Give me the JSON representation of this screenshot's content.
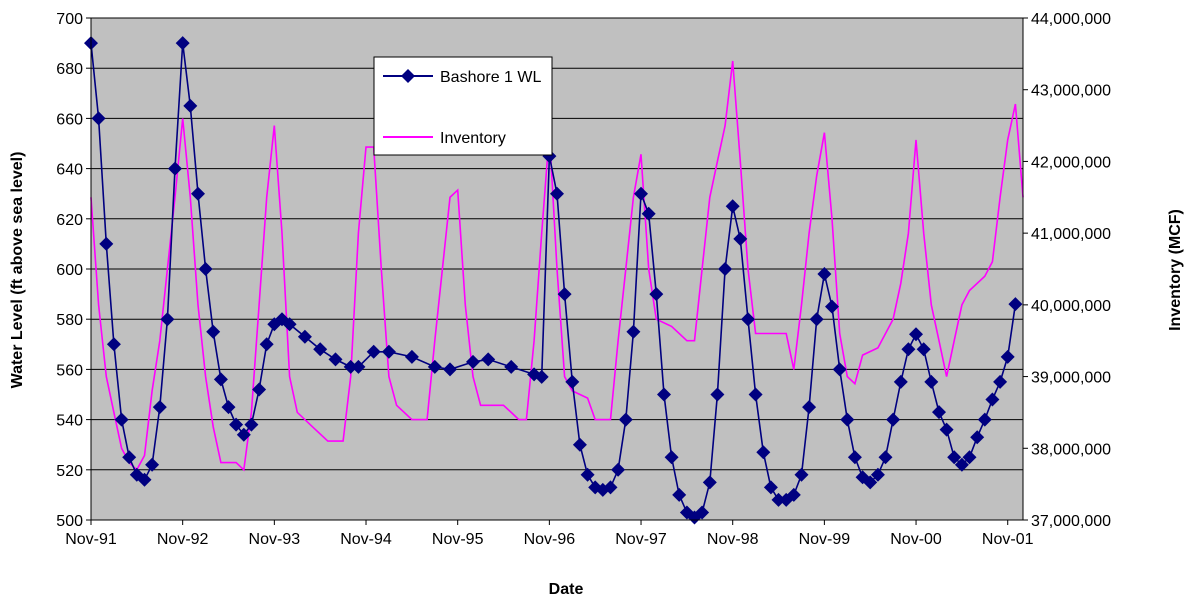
{
  "chart_data": {
    "type": "line",
    "title": "",
    "xlabel": "Date",
    "ylabel": "Water Level (ft above sea level)",
    "y2label": "Inventory (MCF)",
    "x_tick_labels": [
      "Nov-91",
      "Nov-92",
      "Nov-93",
      "Nov-94",
      "Nov-95",
      "Nov-96",
      "Nov-97",
      "Nov-98",
      "Nov-99",
      "Nov-00",
      "Nov-01"
    ],
    "xlim": [
      "1991-11",
      "2002-01"
    ],
    "ylim": [
      500,
      700
    ],
    "y_ticks": [
      500,
      520,
      540,
      560,
      580,
      600,
      620,
      640,
      660,
      680,
      700
    ],
    "y_tick_labels": [
      "500",
      "520",
      "540",
      "560",
      "580",
      "600",
      "620",
      "640",
      "660",
      "680",
      "700"
    ],
    "y2lim": [
      37000000,
      44000000
    ],
    "y2_ticks": [
      37000000,
      38000000,
      39000000,
      40000000,
      41000000,
      42000000,
      43000000,
      44000000
    ],
    "y2_tick_labels": [
      "37,000,000",
      "38,000,000",
      "39,000,000",
      "40,000,000",
      "41,000,000",
      "42,000,000",
      "43,000,000",
      "44,000,000"
    ],
    "grid": true,
    "plot_background": "#c0c0c0",
    "legend": {
      "placement": "top-center"
    },
    "series": [
      {
        "name": "Bashore 1 WL",
        "axis": "left",
        "color": "#000080",
        "marker": "diamond",
        "points": [
          [
            "1991-11",
            690
          ],
          [
            "1991-12",
            660
          ],
          [
            "1992-01",
            610
          ],
          [
            "1992-02",
            570
          ],
          [
            "1992-03",
            540
          ],
          [
            "1992-04",
            525
          ],
          [
            "1992-05",
            518
          ],
          [
            "1992-06",
            516
          ],
          [
            "1992-07",
            522
          ],
          [
            "1992-08",
            545
          ],
          [
            "1992-09",
            580
          ],
          [
            "1992-10",
            640
          ],
          [
            "1992-11",
            690
          ],
          [
            "1992-12",
            665
          ],
          [
            "1993-01",
            630
          ],
          [
            "1993-02",
            600
          ],
          [
            "1993-03",
            575
          ],
          [
            "1993-04",
            556
          ],
          [
            "1993-05",
            545
          ],
          [
            "1993-06",
            538
          ],
          [
            "1993-07",
            534
          ],
          [
            "1993-08",
            538
          ],
          [
            "1993-09",
            552
          ],
          [
            "1993-10",
            570
          ],
          [
            "1993-11",
            578
          ],
          [
            "1993-12",
            580
          ],
          [
            "1994-01",
            578
          ],
          [
            "1994-03",
            573
          ],
          [
            "1994-05",
            568
          ],
          [
            "1994-07",
            564
          ],
          [
            "1994-09",
            561
          ],
          [
            "1994-10",
            561
          ],
          [
            "1994-12",
            567
          ],
          [
            "1995-02",
            567
          ],
          [
            "1995-05",
            565
          ],
          [
            "1995-08",
            561
          ],
          [
            "1995-10",
            560
          ],
          [
            "1996-01",
            563
          ],
          [
            "1996-03",
            564
          ],
          [
            "1996-06",
            561
          ],
          [
            "1996-09",
            558
          ],
          [
            "1996-10",
            557
          ],
          [
            "1996-11",
            645
          ],
          [
            "1996-12",
            630
          ],
          [
            "1997-01",
            590
          ],
          [
            "1997-02",
            555
          ],
          [
            "1997-03",
            530
          ],
          [
            "1997-04",
            518
          ],
          [
            "1997-05",
            513
          ],
          [
            "1997-06",
            512
          ],
          [
            "1997-07",
            513
          ],
          [
            "1997-08",
            520
          ],
          [
            "1997-09",
            540
          ],
          [
            "1997-10",
            575
          ],
          [
            "1997-11",
            630
          ],
          [
            "1997-12",
            622
          ],
          [
            "1998-01",
            590
          ],
          [
            "1998-02",
            550
          ],
          [
            "1998-03",
            525
          ],
          [
            "1998-04",
            510
          ],
          [
            "1998-05",
            503
          ],
          [
            "1998-06",
            501
          ],
          [
            "1998-07",
            503
          ],
          [
            "1998-08",
            515
          ],
          [
            "1998-09",
            550
          ],
          [
            "1998-10",
            600
          ],
          [
            "1998-11",
            625
          ],
          [
            "1998-12",
            612
          ],
          [
            "1999-01",
            580
          ],
          [
            "1999-02",
            550
          ],
          [
            "1999-03",
            527
          ],
          [
            "1999-04",
            513
          ],
          [
            "1999-05",
            508
          ],
          [
            "1999-06",
            508
          ],
          [
            "1999-07",
            510
          ],
          [
            "1999-08",
            518
          ],
          [
            "1999-09",
            545
          ],
          [
            "1999-10",
            580
          ],
          [
            "1999-11",
            598
          ],
          [
            "1999-12",
            585
          ],
          [
            "2000-01",
            560
          ],
          [
            "2000-02",
            540
          ],
          [
            "2000-03",
            525
          ],
          [
            "2000-04",
            517
          ],
          [
            "2000-05",
            515
          ],
          [
            "2000-06",
            518
          ],
          [
            "2000-07",
            525
          ],
          [
            "2000-08",
            540
          ],
          [
            "2000-09",
            555
          ],
          [
            "2000-10",
            568
          ],
          [
            "2000-11",
            574
          ],
          [
            "2000-12",
            568
          ],
          [
            "2001-01",
            555
          ],
          [
            "2001-02",
            543
          ],
          [
            "2001-03",
            536
          ],
          [
            "2001-04",
            525
          ],
          [
            "2001-05",
            522
          ],
          [
            "2001-06",
            525
          ],
          [
            "2001-07",
            533
          ],
          [
            "2001-08",
            540
          ],
          [
            "2001-09",
            548
          ],
          [
            "2001-10",
            555
          ],
          [
            "2001-11",
            565
          ],
          [
            "2001-12",
            586
          ]
        ]
      },
      {
        "name": "Inventory",
        "axis": "right",
        "color": "#ff00ff",
        "marker": "none",
        "points": [
          [
            "1991-11",
            41500000
          ],
          [
            "1991-12",
            40000000
          ],
          [
            "1992-01",
            39000000
          ],
          [
            "1992-02",
            38500000
          ],
          [
            "1992-03",
            38000000
          ],
          [
            "1992-04",
            37800000
          ],
          [
            "1992-05",
            37700000
          ],
          [
            "1992-06",
            37900000
          ],
          [
            "1992-07",
            38800000
          ],
          [
            "1992-08",
            39500000
          ],
          [
            "1992-09",
            40500000
          ],
          [
            "1992-10",
            41500000
          ],
          [
            "1992-11",
            42600000
          ],
          [
            "1992-12",
            41500000
          ],
          [
            "1993-01",
            40000000
          ],
          [
            "1993-02",
            39000000
          ],
          [
            "1993-03",
            38300000
          ],
          [
            "1993-04",
            37800000
          ],
          [
            "1993-06",
            37800000
          ],
          [
            "1993-07",
            37700000
          ],
          [
            "1993-08",
            38500000
          ],
          [
            "1993-09",
            40000000
          ],
          [
            "1993-10",
            41500000
          ],
          [
            "1993-11",
            42500000
          ],
          [
            "1993-12",
            41000000
          ],
          [
            "1994-01",
            39000000
          ],
          [
            "1994-02",
            38500000
          ],
          [
            "1994-04",
            38300000
          ],
          [
            "1994-06",
            38100000
          ],
          [
            "1994-08",
            38100000
          ],
          [
            "1994-09",
            39000000
          ],
          [
            "1994-10",
            41000000
          ],
          [
            "1994-11",
            42200000
          ],
          [
            "1994-12",
            42200000
          ],
          [
            "1995-01",
            40500000
          ],
          [
            "1995-02",
            39000000
          ],
          [
            "1995-03",
            38600000
          ],
          [
            "1995-05",
            38400000
          ],
          [
            "1995-07",
            38400000
          ],
          [
            "1995-08",
            39500000
          ],
          [
            "1995-09",
            40500000
          ],
          [
            "1995-10",
            41500000
          ],
          [
            "1995-11",
            41600000
          ],
          [
            "1995-12",
            40000000
          ],
          [
            "1996-01",
            39000000
          ],
          [
            "1996-02",
            38600000
          ],
          [
            "1996-05",
            38600000
          ],
          [
            "1996-06",
            38500000
          ],
          [
            "1996-07",
            38400000
          ],
          [
            "1996-08",
            38400000
          ],
          [
            "1996-09",
            39500000
          ],
          [
            "1996-10",
            41000000
          ],
          [
            "1996-11",
            42400000
          ],
          [
            "1996-12",
            40500000
          ],
          [
            "1997-01",
            39000000
          ],
          [
            "1997-02",
            38800000
          ],
          [
            "1997-04",
            38700000
          ],
          [
            "1997-05",
            38400000
          ],
          [
            "1997-07",
            38400000
          ],
          [
            "1997-08",
            39500000
          ],
          [
            "1997-09",
            40500000
          ],
          [
            "1997-10",
            41500000
          ],
          [
            "1997-11",
            42100000
          ],
          [
            "1997-12",
            40500000
          ],
          [
            "1998-01",
            39800000
          ],
          [
            "1998-03",
            39700000
          ],
          [
            "1998-05",
            39500000
          ],
          [
            "1998-06",
            39500000
          ],
          [
            "1998-07",
            40500000
          ],
          [
            "1998-08",
            41500000
          ],
          [
            "1998-09",
            42000000
          ],
          [
            "1998-10",
            42500000
          ],
          [
            "1998-11",
            43400000
          ],
          [
            "1998-12",
            42000000
          ],
          [
            "1999-01",
            40500000
          ],
          [
            "1999-02",
            39600000
          ],
          [
            "1999-04",
            39600000
          ],
          [
            "1999-06",
            39600000
          ],
          [
            "1999-07",
            39100000
          ],
          [
            "1999-08",
            40000000
          ],
          [
            "1999-09",
            41000000
          ],
          [
            "1999-10",
            41800000
          ],
          [
            "1999-11",
            42400000
          ],
          [
            "1999-12",
            41200000
          ],
          [
            "2000-01",
            39600000
          ],
          [
            "2000-02",
            39000000
          ],
          [
            "2000-03",
            38900000
          ],
          [
            "2000-04",
            39300000
          ],
          [
            "2000-06",
            39400000
          ],
          [
            "2000-08",
            39800000
          ],
          [
            "2000-09",
            40300000
          ],
          [
            "2000-10",
            41000000
          ],
          [
            "2000-11",
            42300000
          ],
          [
            "2000-12",
            41000000
          ],
          [
            "2001-01",
            40000000
          ],
          [
            "2001-02",
            39500000
          ],
          [
            "2001-03",
            39000000
          ],
          [
            "2001-04",
            39500000
          ],
          [
            "2001-05",
            40000000
          ],
          [
            "2001-06",
            40200000
          ],
          [
            "2001-08",
            40400000
          ],
          [
            "2001-09",
            40600000
          ],
          [
            "2001-10",
            41500000
          ],
          [
            "2001-11",
            42300000
          ],
          [
            "2001-12",
            42800000
          ],
          [
            "2002-01",
            41500000
          ]
        ]
      }
    ]
  }
}
